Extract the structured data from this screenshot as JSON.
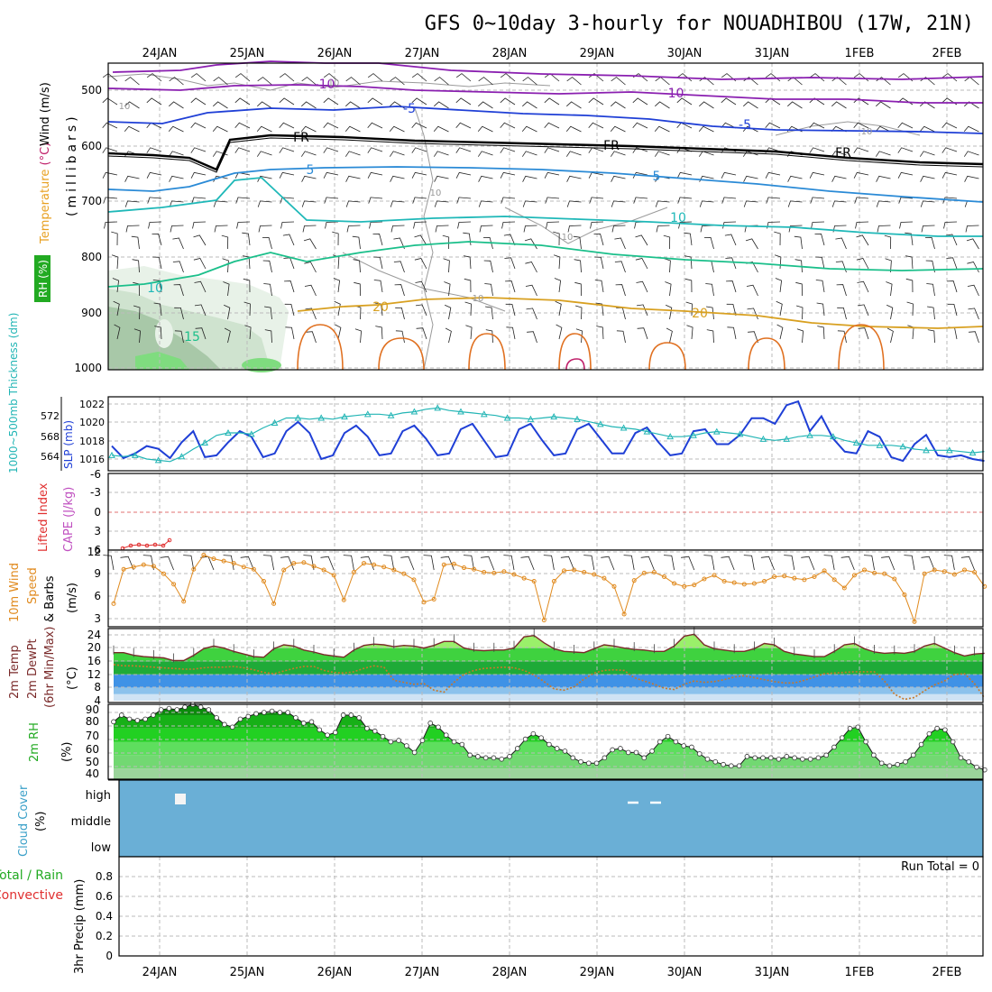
{
  "title": "GFS 0~10day 3-hourly for NOUADHIBOU (17W, 21N)",
  "dates": [
    "24JAN",
    "25JAN",
    "26JAN",
    "27JAN",
    "28JAN",
    "29JAN",
    "30JAN",
    "31JAN",
    "1FEB",
    "2FEB"
  ],
  "colors": {
    "grid": "#bbbbbb",
    "frame": "#000000",
    "slp": "#1f3fd6",
    "thickness": "#22b5b5",
    "wind10": "#e08a1e",
    "temp2m": "#7a2a2a",
    "dewpt": "#c8782a",
    "rh2m_line": "#1a1a1a",
    "cloud_fill": "#6aafd6",
    "lifted": "#e03030"
  },
  "panels": {
    "upper": {
      "y_label": "(millibars)",
      "labels": [
        {
          "text": "Wind",
          "color": "#000000"
        },
        {
          "text": " (m/s)",
          "color": "#000000"
        },
        {
          "text": "Temperature",
          "color": "#e8a020"
        },
        {
          "text": " (°C)",
          "color": "#c0206a"
        },
        {
          "text": "RH (%)",
          "color": "#ffffff",
          "bg": "#22aa22"
        }
      ],
      "ticks": [
        "500",
        "600",
        "700",
        "800",
        "900",
        "1000"
      ],
      "contour_labels": {
        "fr": "FR",
        "minus10": "-10",
        "minus5": "-5",
        "plus5": "5",
        "plus10": "10",
        "plus15": "15",
        "plus20": "20",
        "rh10": "10"
      }
    },
    "slp": {
      "label_left": "1000~500mb Thickness (dm)",
      "label_right": "SLP (mb)",
      "left_ticks": [
        "572",
        "568",
        "564"
      ],
      "right_ticks": [
        "1022",
        "1020",
        "1018",
        "1016"
      ]
    },
    "cape": {
      "label_left": "Lifted Index",
      "label_right": "CAPE (J/kg)",
      "ticks": [
        "-6",
        "-3",
        "0",
        "3",
        "6"
      ]
    },
    "wind10": {
      "label_a": "10m Wind",
      "label_b": "Speed",
      "label_c": "& Barbs",
      "unit": "(m/s)",
      "ticks": [
        "12",
        "9",
        "6",
        "3"
      ]
    },
    "temp2m": {
      "label_a": "2m Temp",
      "label_b": "2m DewPt",
      "label_c": "(6hr Min/Max)",
      "unit": "(°C)",
      "ticks": [
        "24",
        "20",
        "16",
        "12",
        "8",
        "4"
      ]
    },
    "rh2m": {
      "label": "2m RH",
      "unit": "(%)",
      "ticks": [
        "90",
        "80",
        "70",
        "60",
        "50",
        "40"
      ]
    },
    "cloud": {
      "label": "Cloud Cover",
      "unit": "(%)",
      "levels": [
        "high",
        "middle",
        "low"
      ]
    },
    "precip": {
      "label_a": "Total / Rain",
      "label_b": "Convective",
      "label_c": "3hr Precip (mm)",
      "ticks": [
        "0.8",
        "0.6",
        "0.4",
        "0.2",
        "0"
      ],
      "run_total": "Run Total = 0"
    }
  },
  "chart_data": [
    {
      "type": "line",
      "panel": "slp",
      "x_unit": "hours since 23JAN 12UTC (3-hourly)",
      "series": [
        {
          "name": "SLP (mb)",
          "values": [
            1017.4,
            1016.1,
            1016.6,
            1017.4,
            1017.1,
            1016.1,
            1017.8,
            1019.0,
            1016.2,
            1016.4,
            1017.8,
            1019.0,
            1018.4,
            1016.2,
            1016.6,
            1019.0,
            1020.0,
            1018.8,
            1016.0,
            1016.4,
            1018.8,
            1019.6,
            1018.4,
            1016.4,
            1016.6,
            1019.0,
            1019.6,
            1018.2,
            1016.4,
            1016.6,
            1019.2,
            1019.8,
            1018.0,
            1016.2,
            1016.4,
            1019.2,
            1019.8,
            1018.0,
            1016.4,
            1016.6,
            1019.2,
            1019.8,
            1018.2,
            1016.6,
            1016.6,
            1018.8,
            1019.4,
            1017.8,
            1016.4,
            1016.6,
            1019.0,
            1019.2,
            1017.6,
            1017.6,
            1018.6,
            1020.4,
            1020.4,
            1019.8,
            1021.8,
            1022.2,
            1019.0,
            1020.6,
            1018.2,
            1016.8,
            1016.6,
            1019.0,
            1018.4,
            1016.2,
            1015.8,
            1017.6,
            1018.6,
            1016.4,
            1016.2,
            1016.4,
            1016.0,
            1015.8
          ]
        },
        {
          "name": "1000-500mb Thickness (dm)",
          "values": [
            564.6,
            564.4,
            564.6,
            564.0,
            563.8,
            563.6,
            564.4,
            565.6,
            566.6,
            567.8,
            568.2,
            568.2,
            568.0,
            569.0,
            569.8,
            570.6,
            570.6,
            570.4,
            570.6,
            570.4,
            570.8,
            571.0,
            571.2,
            571.2,
            571.0,
            571.4,
            571.6,
            572.0,
            572.2,
            571.8,
            571.6,
            571.4,
            571.2,
            571.0,
            570.6,
            570.6,
            570.4,
            570.6,
            570.8,
            570.6,
            570.4,
            570.0,
            569.6,
            569.2,
            569.0,
            568.8,
            568.4,
            568.0,
            567.6,
            567.6,
            567.8,
            568.2,
            568.4,
            568.2,
            568.0,
            567.6,
            567.2,
            567.0,
            567.2,
            567.6,
            567.8,
            567.8,
            567.6,
            567.0,
            566.6,
            566.2,
            566.2,
            566.2,
            566.0,
            565.6,
            565.4,
            565.4,
            565.4,
            565.2,
            565.0,
            565.2
          ]
        }
      ]
    },
    {
      "type": "line",
      "panel": "wind10",
      "series": [
        {
          "name": "10m Wind Speed (m/s)",
          "values": [
            5.0,
            9.6,
            9.9,
            10.2,
            10.0,
            9.0,
            7.6,
            5.3,
            9.6,
            11.5,
            11.0,
            10.7,
            10.4,
            9.9,
            9.6,
            8.0,
            5.0,
            9.5,
            10.4,
            10.5,
            10.0,
            9.5,
            8.8,
            5.5,
            9.2,
            10.4,
            10.2,
            9.9,
            9.5,
            9.0,
            8.2,
            5.2,
            5.6,
            10.2,
            10.3,
            9.8,
            9.6,
            9.2,
            9.1,
            9.3,
            8.9,
            8.4,
            8.0,
            2.8,
            8.0,
            9.4,
            9.5,
            9.2,
            8.9,
            8.4,
            7.3,
            3.6,
            8.1,
            9.1,
            9.2,
            8.6,
            7.7,
            7.3,
            7.5,
            8.3,
            8.8,
            8.0,
            7.8,
            7.6,
            7.7,
            8.0,
            8.6,
            8.7,
            8.4,
            8.2,
            8.6,
            9.4,
            8.2,
            7.1,
            8.8,
            9.5,
            9.1,
            9.0,
            8.3,
            6.2,
            2.6,
            9.0,
            9.5,
            9.3,
            8.9,
            9.5,
            9.2,
            7.3
          ]
        }
      ]
    },
    {
      "type": "area",
      "panel": "temp2m",
      "series": [
        {
          "name": "2m Temp (°C)",
          "values": [
            18.6,
            18.6,
            17.8,
            17.4,
            17.2,
            17.0,
            16.2,
            16.2,
            17.8,
            19.8,
            20.6,
            20.0,
            19.0,
            18.2,
            17.4,
            17.2,
            19.8,
            21.0,
            20.6,
            19.4,
            18.8,
            18.0,
            17.6,
            17.2,
            19.4,
            20.8,
            21.2,
            21.0,
            20.4,
            20.8,
            20.6,
            20.0,
            20.8,
            22.0,
            22.0,
            20.0,
            19.4,
            19.2,
            19.4,
            19.4,
            20.0,
            23.4,
            23.8,
            21.6,
            19.8,
            19.0,
            18.8,
            18.6,
            19.8,
            21.0,
            20.6,
            20.0,
            19.6,
            19.4,
            19.0,
            19.0,
            20.6,
            23.6,
            24.2,
            21.0,
            19.8,
            19.4,
            19.0,
            19.0,
            19.8,
            21.4,
            21.0,
            19.0,
            18.2,
            17.8,
            17.4,
            17.4,
            19.0,
            21.0,
            21.4,
            19.8,
            18.8,
            18.4,
            18.6,
            18.4,
            19.0,
            20.6,
            21.4,
            20.0,
            18.6,
            17.6,
            18.2,
            18.4
          ]
        },
        {
          "name": "2m DewPt (°C)",
          "values": [
            15.0,
            14.6,
            14.6,
            14.4,
            14.2,
            14.0,
            13.8,
            13.6,
            13.6,
            14.0,
            14.2,
            14.2,
            14.4,
            14.0,
            13.4,
            12.6,
            12.2,
            13.0,
            13.8,
            14.4,
            14.4,
            13.2,
            12.6,
            12.4,
            12.8,
            13.8,
            14.6,
            14.2,
            10.2,
            9.6,
            9.0,
            9.2,
            7.2,
            6.6,
            9.6,
            12.0,
            13.2,
            13.8,
            14.0,
            14.2,
            14.0,
            13.2,
            11.8,
            9.8,
            7.6,
            7.2,
            8.2,
            10.6,
            12.4,
            13.2,
            13.4,
            13.2,
            11.0,
            10.0,
            9.0,
            7.8,
            7.4,
            9.0,
            10.0,
            9.6,
            9.8,
            10.4,
            11.2,
            11.6,
            11.0,
            10.4,
            9.8,
            9.4,
            9.4,
            10.2,
            11.2,
            12.2,
            12.4,
            12.6,
            12.8,
            12.8,
            12.8,
            10.0,
            6.0,
            4.4,
            5.0,
            7.0,
            8.8,
            10.0,
            12.0,
            12.2,
            9.2,
            4.8
          ]
        }
      ]
    },
    {
      "type": "area",
      "panel": "rh2m",
      "series": [
        {
          "name": "2m RH (%)",
          "values": [
            75,
            80,
            77,
            76,
            77,
            80,
            84,
            85,
            84,
            86,
            88,
            86,
            84,
            78,
            73,
            71,
            77,
            79,
            81,
            82,
            83,
            82,
            82,
            78,
            74,
            75,
            69,
            65,
            67,
            80,
            80,
            78,
            70,
            68,
            64,
            60,
            61,
            57,
            52,
            61,
            74,
            71,
            65,
            60,
            58,
            50,
            49,
            48,
            48,
            47,
            49,
            55,
            62,
            66,
            63,
            58,
            55,
            53,
            48,
            45,
            44,
            44,
            48,
            54,
            55,
            52,
            52,
            48,
            53,
            60,
            64,
            60,
            57,
            56,
            51,
            47,
            45,
            43,
            42,
            42,
            49,
            48,
            48,
            48,
            47,
            49,
            48,
            47,
            47,
            48,
            50,
            56,
            63,
            70,
            71,
            60,
            50,
            44,
            42,
            43,
            45,
            50,
            58,
            66,
            70,
            69,
            60,
            48,
            45,
            41,
            39
          ]
        }
      ]
    },
    {
      "type": "heatmap",
      "panel": "cloud",
      "series": [
        {
          "name": "high",
          "values": [
            0,
            0,
            0,
            0,
            1,
            0,
            0,
            0,
            0,
            0,
            0,
            0,
            0,
            0,
            0,
            0,
            0,
            0,
            0,
            0,
            0,
            0,
            0,
            0,
            0,
            0,
            0,
            0,
            0,
            0,
            0,
            0,
            0,
            0,
            0,
            0,
            0,
            0,
            0,
            0,
            0,
            0,
            0,
            0,
            0,
            0,
            0,
            0,
            0,
            0,
            0,
            0,
            0,
            0,
            0,
            0,
            0,
            0,
            0,
            0,
            0,
            0,
            0,
            0,
            0,
            0,
            0,
            0,
            0,
            0,
            0,
            0,
            0,
            0,
            0,
            0,
            0,
            0,
            0,
            0
          ]
        },
        {
          "name": "middle",
          "values": []
        },
        {
          "name": "low",
          "values": []
        }
      ]
    },
    {
      "type": "bar",
      "panel": "precip",
      "series": [
        {
          "name": "3hr Precip (mm)",
          "values": [
            0,
            0,
            0,
            0,
            0,
            0,
            0,
            0,
            0,
            0,
            0,
            0,
            0,
            0,
            0,
            0,
            0,
            0,
            0,
            0,
            0,
            0,
            0,
            0,
            0,
            0,
            0,
            0,
            0,
            0,
            0,
            0,
            0,
            0,
            0,
            0,
            0,
            0,
            0,
            0,
            0,
            0,
            0,
            0,
            0,
            0,
            0,
            0,
            0,
            0,
            0,
            0,
            0,
            0,
            0,
            0,
            0,
            0,
            0,
            0,
            0,
            0,
            0,
            0,
            0,
            0,
            0,
            0,
            0,
            0,
            0,
            0,
            0,
            0,
            0,
            0,
            0,
            0,
            0,
            0
          ]
        }
      ],
      "ylim": [
        0,
        1
      ]
    }
  ]
}
